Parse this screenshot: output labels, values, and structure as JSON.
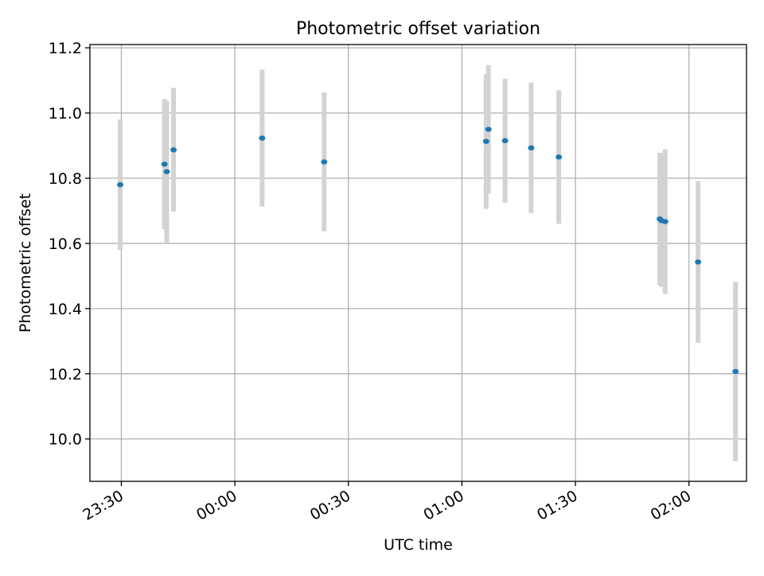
{
  "chart_data": {
    "type": "scatter",
    "title": "Photometric offset variation",
    "xlabel": "UTC time",
    "ylabel": "Photometric offset",
    "x_unit": "UTC time (HH:MM)",
    "x_ticks": [
      "23:30",
      "00:00",
      "00:30",
      "01:00",
      "01:30",
      "02:00"
    ],
    "y_ticks": [
      "10.0",
      "10.2",
      "10.4",
      "10.6",
      "10.8",
      "11.0",
      "11.2"
    ],
    "xlim": [
      "23:21.7",
      "02:15.2"
    ],
    "ylim": [
      9.87,
      11.21
    ],
    "grid": true,
    "colors": {
      "point": "#1f77b4",
      "errorbar": "#d3d3d3",
      "grid": "#b0b0b0"
    },
    "points": [
      {
        "x": "23:29.7",
        "y": 10.78,
        "err": 0.2
      },
      {
        "x": "23:41.4",
        "y": 10.843,
        "err": 0.2
      },
      {
        "x": "23:42.0",
        "y": 10.82,
        "err": 0.217
      },
      {
        "x": "23:43.8",
        "y": 10.887,
        "err": 0.19
      },
      {
        "x": "00:07.2",
        "y": 10.923,
        "err": 0.21
      },
      {
        "x": "00:23.6",
        "y": 10.85,
        "err": 0.213
      },
      {
        "x": "01:06.4",
        "y": 10.913,
        "err": 0.207
      },
      {
        "x": "01:07.0",
        "y": 10.95,
        "err": 0.197
      },
      {
        "x": "01:11.4",
        "y": 10.915,
        "err": 0.19
      },
      {
        "x": "01:18.3",
        "y": 10.893,
        "err": 0.2
      },
      {
        "x": "01:25.6",
        "y": 10.865,
        "err": 0.205
      },
      {
        "x": "01:52.3",
        "y": 10.675,
        "err": 0.203
      },
      {
        "x": "01:52.7",
        "y": 10.67,
        "err": 0.203
      },
      {
        "x": "01:53.7",
        "y": 10.667,
        "err": 0.222
      },
      {
        "x": "02:02.4",
        "y": 10.543,
        "err": 0.248
      },
      {
        "x": "02:12.3",
        "y": 10.207,
        "err": 0.275
      }
    ]
  }
}
